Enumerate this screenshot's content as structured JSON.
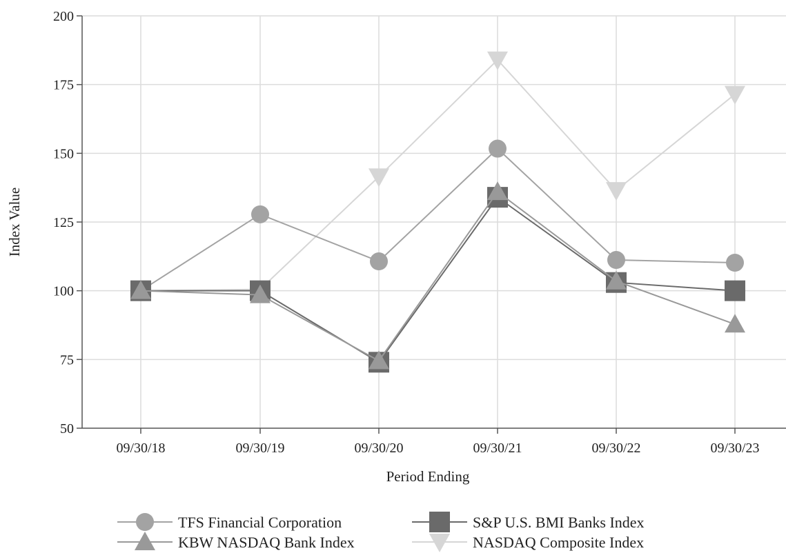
{
  "chart_data": {
    "type": "line",
    "title": "",
    "xlabel": "Period Ending",
    "ylabel": "Index Value",
    "categories": [
      "09/30/18",
      "09/30/19",
      "09/30/20",
      "09/30/21",
      "09/30/22",
      "09/30/23"
    ],
    "ylim": [
      50,
      200
    ],
    "yticks": [
      50,
      75,
      100,
      125,
      150,
      175,
      200
    ],
    "grid": true,
    "legend_position": "bottom",
    "series": [
      {
        "name": "TFS Financial Corporation",
        "marker": "circle",
        "color": "#a3a3a3",
        "values": [
          100,
          127.8,
          110.7,
          151.7,
          111.2,
          110.2
        ]
      },
      {
        "name": "S&P U.S. BMI Banks Index",
        "marker": "square",
        "color": "#6a6a6a",
        "values": [
          100,
          100.0,
          74.0,
          134.0,
          103.0,
          100.0
        ]
      },
      {
        "name": "KBW NASDAQ Bank Index",
        "marker": "triangle-up",
        "color": "#999999",
        "values": [
          100,
          98.5,
          74.5,
          136.0,
          103.5,
          87.8
        ]
      },
      {
        "name": "NASDAQ Composite Index",
        "marker": "triangle-down",
        "color": "#d6d6d6",
        "values": [
          100,
          100.5,
          141.5,
          184.0,
          136.5,
          171.5
        ]
      }
    ]
  }
}
